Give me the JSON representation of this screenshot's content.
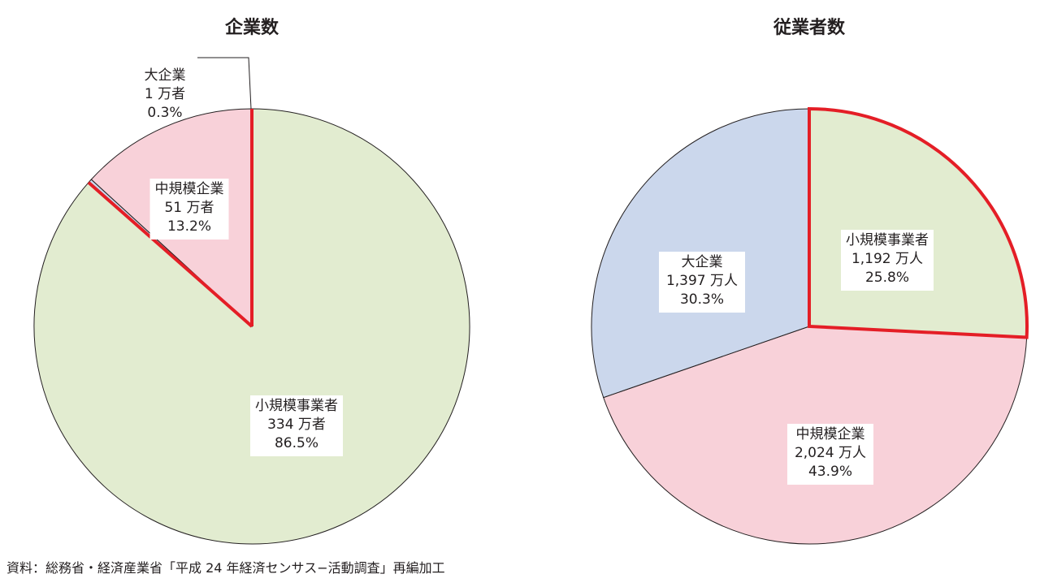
{
  "chart_data": [
    {
      "type": "pie",
      "title": "企業数",
      "slices": [
        {
          "name": "小規模事業者",
          "value_label": "334 万者",
          "value": 334,
          "percent_label": "86.5%",
          "percent": 86.5,
          "color": "#e2ecd0",
          "highlighted": true
        },
        {
          "name": "中規模企業",
          "value_label": "51 万者",
          "value": 51,
          "percent_label": "13.2%",
          "percent": 13.2,
          "color": "#f8d1d9",
          "highlighted": true
        },
        {
          "name": "大企業",
          "value_label": "1 万者",
          "value": 1,
          "percent_label": "0.3%",
          "percent": 0.3,
          "color": "#cbd7ec",
          "highlighted": false
        }
      ]
    },
    {
      "type": "pie",
      "title": "従業者数",
      "slices": [
        {
          "name": "小規模事業者",
          "value_label": "1,192 万人",
          "value": 1192,
          "percent_label": "25.8%",
          "percent": 25.8,
          "color": "#e2ecd0",
          "highlighted": true
        },
        {
          "name": "中規模企業",
          "value_label": "2,024 万人",
          "value": 2024,
          "percent_label": "43.9%",
          "percent": 43.9,
          "color": "#f8d1d9",
          "highlighted": false
        },
        {
          "name": "大企業",
          "value_label": "1,397 万人",
          "value": 1397,
          "percent_label": "30.3%",
          "percent": 30.3,
          "color": "#cbd7ec",
          "highlighted": false
        }
      ]
    }
  ],
  "highlight_color": "#e41e26",
  "source_note": "資料：総務省・経済産業省「平成 24 年経済センサス−活動調査」再編加工"
}
